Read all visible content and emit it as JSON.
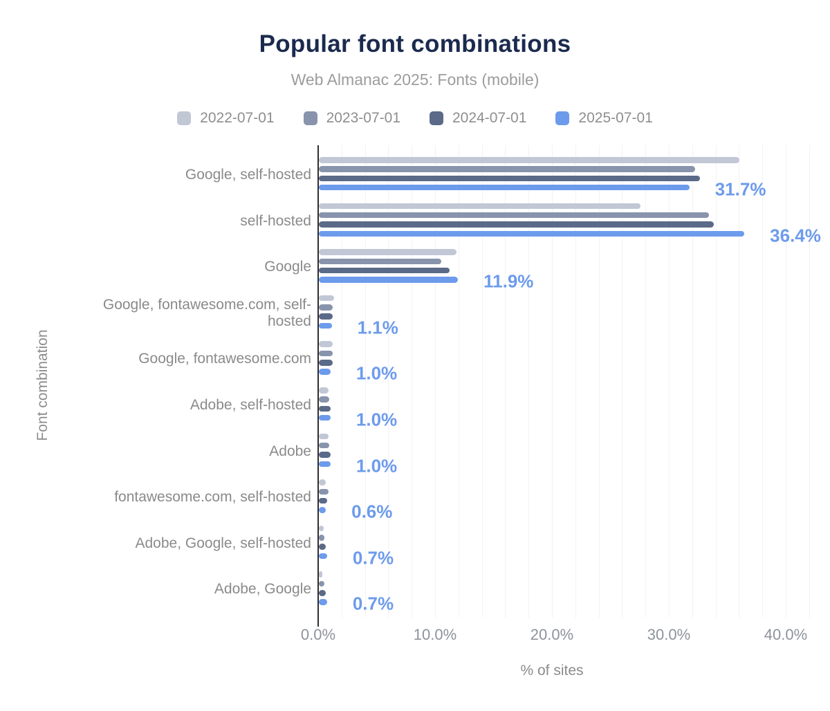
{
  "header": {
    "title": "Popular font combinations",
    "subtitle": "Web Almanac 2025: Fonts (mobile)"
  },
  "chart_data": {
    "type": "bar",
    "orientation": "horizontal",
    "title": "Popular font combinations",
    "subtitle": "Web Almanac 2025: Fonts (mobile)",
    "xlabel": "% of sites",
    "ylabel": "Font combination",
    "xlim": [
      0,
      42
    ],
    "grid_step_pct": 2,
    "grid": true,
    "legend_position": "top",
    "x_ticks": [
      "0.0%",
      "10.0%",
      "20.0%",
      "30.0%",
      "40.0%"
    ],
    "x_tick_values": [
      0,
      10,
      20,
      30,
      40
    ],
    "categories": [
      "Google, self-hosted",
      "self-hosted",
      "Google",
      "Google, fontawesome.com, self-hosted",
      "Google, fontawesome.com",
      "Adobe, self-hosted",
      "Adobe",
      "fontawesome.com, self-hosted",
      "Adobe, Google, self-hosted",
      "Adobe, Google"
    ],
    "series": [
      {
        "name": "2022-07-01",
        "color": "#c1c7d5",
        "values": [
          36.0,
          27.5,
          11.8,
          1.3,
          1.2,
          0.8,
          0.8,
          0.6,
          0.4,
          0.3
        ]
      },
      {
        "name": "2023-07-01",
        "color": "#8894ac",
        "values": [
          32.2,
          33.4,
          10.5,
          1.2,
          1.2,
          0.9,
          0.9,
          0.8,
          0.5,
          0.5
        ]
      },
      {
        "name": "2024-07-01",
        "color": "#5a6a88",
        "values": [
          32.6,
          33.8,
          11.2,
          1.2,
          1.2,
          1.0,
          1.0,
          0.7,
          0.6,
          0.6
        ]
      },
      {
        "name": "2025-07-01",
        "color": "#6d9bec",
        "values": [
          31.7,
          36.4,
          11.9,
          1.1,
          1.0,
          1.0,
          1.0,
          0.6,
          0.7,
          0.7
        ]
      }
    ],
    "value_labels": [
      "31.7%",
      "36.4%",
      "11.9%",
      "1.1%",
      "1.0%",
      "1.0%",
      "1.0%",
      "0.6%",
      "0.7%",
      "0.7%"
    ],
    "value_label_series": "2025-07-01"
  },
  "colors": {
    "title": "#1b2a4e",
    "subtitle": "#9c9c9c",
    "category_label": "#8a8a8a",
    "tick_label": "#8d929b",
    "axis_title": "#8b8b8b",
    "value_label": "#6d9bec",
    "axis_line": "#2e2e2e",
    "gridline": "#f2f2f4",
    "background": "#ffffff"
  }
}
